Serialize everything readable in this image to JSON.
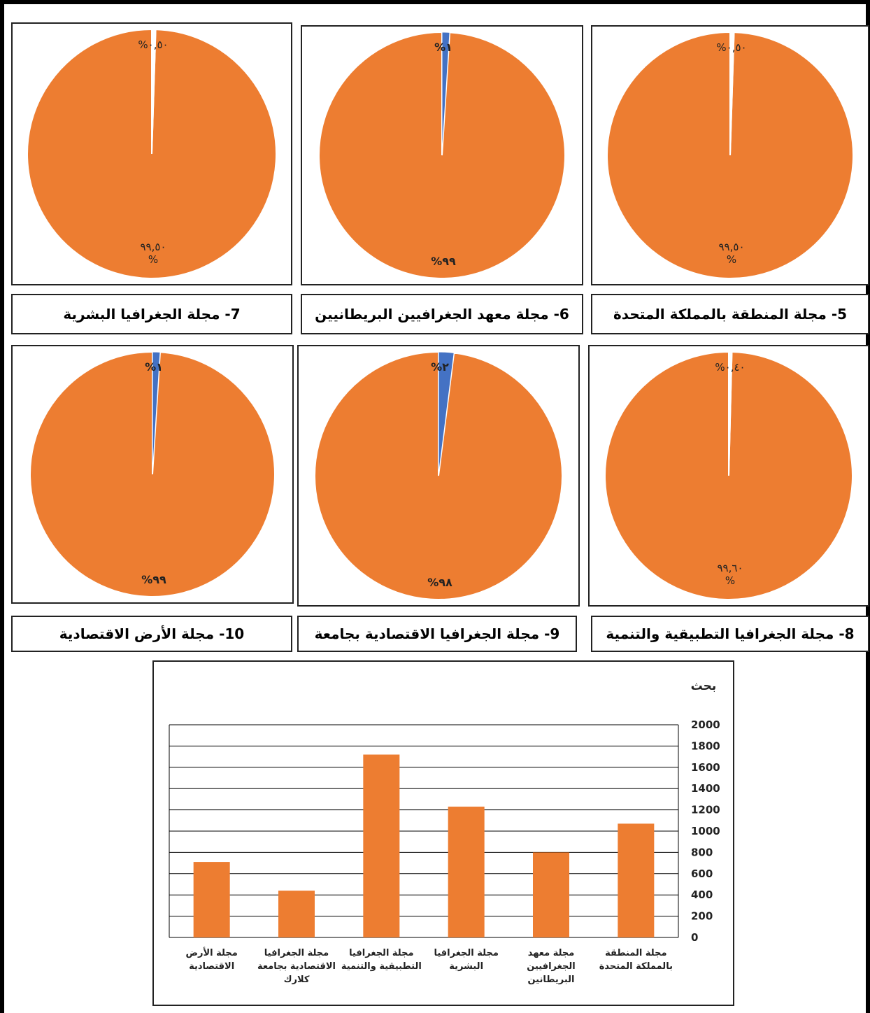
{
  "colors": {
    "major": "#ED7D31",
    "minor": "#4472C4",
    "gridline": "#000000",
    "bar": "#ED7D31"
  },
  "pies": [
    {
      "title": "5- مجلة المنطقة بالمملكة المتحدة",
      "top_label": "%٠,٥٠",
      "bottom_label_line1": "٩٩,٥٠",
      "bottom_label_line2": "%"
    },
    {
      "title": "6- مجلة معهد الجغرافيين البريطانيين",
      "top_label": "%١",
      "bottom_label_line1": "%٩٩",
      "bottom_label_line2": ""
    },
    {
      "title": "7- مجلة الجغرافيا البشرية",
      "top_label": "%٠,٥٠",
      "bottom_label_line1": "٩٩,٥٠",
      "bottom_label_line2": "%"
    },
    {
      "title": "8- مجلة الجغرافيا التطبيقية والتنمية",
      "top_label": "%٠,٤٠",
      "bottom_label_line1": "٩٩,٦٠",
      "bottom_label_line2": "%"
    },
    {
      "title": "9- مجلة الجغرافيا الاقتصادية بجامعة",
      "top_label": "%٢",
      "bottom_label_line1": "%٩٨",
      "bottom_label_line2": ""
    },
    {
      "title": "10- مجلة الأرض الاقتصادية",
      "top_label": "%١",
      "bottom_label_line1": "%٩٩",
      "bottom_label_line2": ""
    }
  ],
  "chart_data": [
    {
      "type": "pie",
      "slices": [
        {
          "value": 99.5
        },
        {
          "value": 0.5
        }
      ]
    },
    {
      "type": "pie",
      "slices": [
        {
          "value": 99
        },
        {
          "value": 1
        }
      ]
    },
    {
      "type": "pie",
      "slices": [
        {
          "value": 99.5
        },
        {
          "value": 0.5
        }
      ]
    },
    {
      "type": "pie",
      "slices": [
        {
          "value": 99.6
        },
        {
          "value": 0.4
        }
      ]
    },
    {
      "type": "pie",
      "slices": [
        {
          "value": 98
        },
        {
          "value": 2
        }
      ]
    },
    {
      "type": "pie",
      "slices": [
        {
          "value": 99
        },
        {
          "value": 1
        }
      ]
    },
    {
      "type": "bar",
      "ylabel": "بحث",
      "ylim": [
        0,
        2000
      ],
      "yticks": [
        "0",
        "200",
        "400",
        "600",
        "800",
        "1000",
        "1200",
        "1400",
        "1600",
        "1800",
        "2000"
      ],
      "grid": true,
      "categories": [
        [
          "مجلة المنطقة",
          "بالمملكة المتحدة"
        ],
        [
          "مجلة معهد",
          "الجغرافيين",
          "البريطانين"
        ],
        [
          "مجلة الجغرافيا",
          "البشرية"
        ],
        [
          "مجلة الجغرافيا",
          "التطبيقية والتنمية"
        ],
        [
          "مجلة الجغرافيا",
          "الاقتصادية بجامعة",
          "كلارك"
        ],
        [
          "مجلة الأرض",
          "الاقتصادية"
        ]
      ],
      "values": [
        1070,
        800,
        1230,
        1720,
        440,
        710
      ]
    }
  ]
}
